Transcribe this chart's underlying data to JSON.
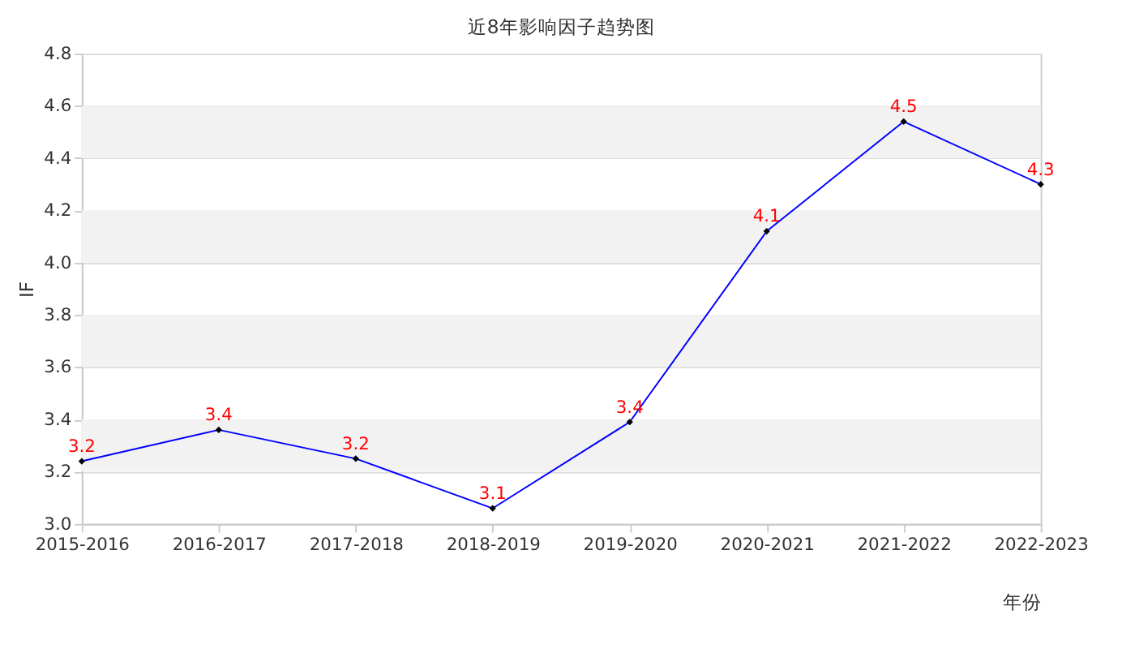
{
  "chart_data": {
    "type": "line",
    "title": "近8年影响因子趋势图",
    "xlabel": "年份",
    "ylabel": "IF",
    "categories": [
      "2015-2016",
      "2016-2017",
      "2017-2018",
      "2018-2019",
      "2019-2020",
      "2020-2021",
      "2021-2022",
      "2022-2023"
    ],
    "series": [
      {
        "color": "#0000ff",
        "values": [
          3.24,
          3.36,
          3.25,
          3.06,
          3.39,
          4.12,
          4.54,
          4.3
        ],
        "value_labels": [
          "3.2",
          "3.4",
          "3.2",
          "3.1",
          "3.4",
          "4.1",
          "4.5",
          "4.3"
        ]
      }
    ],
    "ylim": [
      3.0,
      4.8
    ],
    "yticks": [
      {
        "value": 3.0,
        "label": "3.0"
      },
      {
        "value": 3.2,
        "label": "3.2"
      },
      {
        "value": 3.4,
        "label": "3.4"
      },
      {
        "value": 3.6,
        "label": "3.6"
      },
      {
        "value": 3.8,
        "label": "3.8"
      },
      {
        "value": 4.0,
        "label": "4.0"
      },
      {
        "value": 4.2,
        "label": "4.2"
      },
      {
        "value": 4.4,
        "label": "4.4"
      },
      {
        "value": 4.6,
        "label": "4.6"
      },
      {
        "value": 4.8,
        "label": "4.8"
      }
    ],
    "bands": [
      {
        "axis": "y",
        "from": 3.2,
        "to": 3.4,
        "color": "#f2f2f2"
      },
      {
        "axis": "y",
        "from": 3.6,
        "to": 3.8,
        "color": "#f2f2f2"
      },
      {
        "axis": "y",
        "from": 4.0,
        "to": 4.2,
        "color": "#f2f2f2"
      },
      {
        "axis": "y",
        "from": 4.4,
        "to": 4.6,
        "color": "#f2f2f2"
      }
    ],
    "grid": "y",
    "marker": "diamond"
  }
}
